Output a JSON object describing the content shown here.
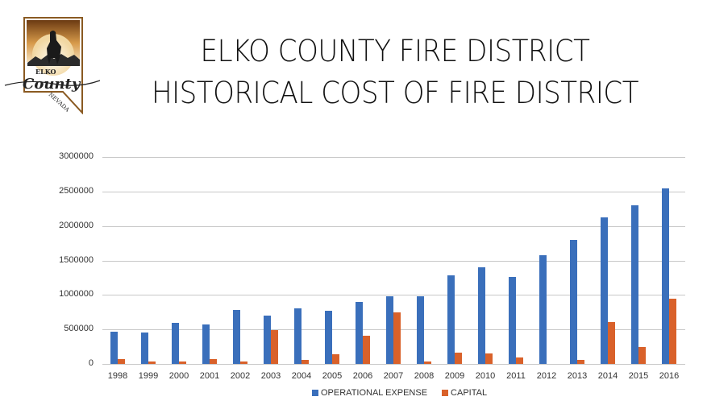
{
  "header": {
    "title_line1": "ELKO COUNTY FIRE DISTRICT",
    "title_line2": "HISTORICAL COST OF FIRE DISTRICT",
    "logo": {
      "top_text": "ELKO",
      "script_text": "County",
      "bottom_text": "NEVADA"
    }
  },
  "colors": {
    "operational": "#3a6fbb",
    "capital": "#d9612a",
    "grid": "#c8c8c8"
  },
  "chart_data": {
    "type": "bar",
    "title": "ELKO COUNTY FIRE DISTRICT HISTORICAL COST OF FIRE DISTRICT",
    "xlabel": "",
    "ylabel": "",
    "ylim": [
      0,
      3000000
    ],
    "yticks": [
      0,
      500000,
      1000000,
      1500000,
      2000000,
      2500000,
      3000000
    ],
    "ytick_labels": [
      "0",
      "500000",
      "1000000",
      "1500000",
      "2000000",
      "2500000",
      "3000000"
    ],
    "grid": true,
    "legend_position": "bottom",
    "categories": [
      "1998",
      "1999",
      "2000",
      "2001",
      "2002",
      "2003",
      "2004",
      "2005",
      "2006",
      "2007",
      "2008",
      "2009",
      "2010",
      "2011",
      "2012",
      "2013",
      "2014",
      "2015",
      "2016"
    ],
    "series": [
      {
        "name": "OPERATIONAL EXPENSE",
        "color": "#3a6fbb",
        "values": [
          465000,
          455000,
          595000,
          567000,
          786000,
          704000,
          806000,
          775000,
          900000,
          978000,
          985000,
          1285000,
          1398000,
          1260000,
          1580000,
          1792000,
          2124000,
          2297000,
          2543000
        ]
      },
      {
        "name": "CAPITAL",
        "color": "#d9612a",
        "values": [
          74000,
          39000,
          40000,
          74000,
          35000,
          490000,
          62000,
          144000,
          407000,
          751000,
          40000,
          165000,
          150000,
          95000,
          0,
          62000,
          610000,
          246000,
          943000
        ]
      }
    ]
  }
}
